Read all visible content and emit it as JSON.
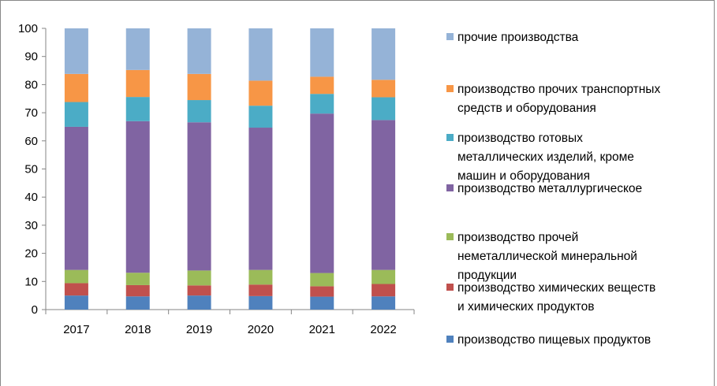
{
  "chart_data": {
    "type": "bar",
    "stacked": true,
    "percent_stacked": true,
    "categories": [
      "2017",
      "2018",
      "2019",
      "2020",
      "2021",
      "2022"
    ],
    "ylim": [
      0,
      100
    ],
    "yticks": [
      "0",
      "10",
      "20",
      "30",
      "40",
      "50",
      "60",
      "70",
      "80",
      "90",
      "100"
    ],
    "grid": false,
    "legend_position": "right",
    "series": [
      {
        "name": "производство пищевых продуктов",
        "color": "#4F81BD",
        "values": [
          5,
          4.7,
          5,
          4.8,
          4.6,
          4.7
        ]
      },
      {
        "name": "производство химических веществ и химических продуктов",
        "color": "#C0504D",
        "values": [
          4.4,
          4,
          3.6,
          4.1,
          3.7,
          4.4
        ]
      },
      {
        "name": "производство прочей неметаллической минеральной продукции",
        "color": "#9BBB59",
        "values": [
          4.7,
          4.4,
          5.3,
          5.2,
          4.7,
          5
        ]
      },
      {
        "name": "производство металлургическое",
        "color": "#8064A2",
        "values": [
          50.9,
          53.9,
          52.7,
          50.6,
          56.7,
          53.3
        ]
      },
      {
        "name": "производство готовых металлических изделий, кроме машин и оборудования",
        "color": "#4BACC6",
        "values": [
          8.8,
          8.6,
          7.9,
          7.8,
          7,
          8.1
        ]
      },
      {
        "name": "производство прочих транспортных средств и оборудования",
        "color": "#F79646",
        "values": [
          10,
          9.6,
          9.3,
          8.9,
          6.1,
          6.2
        ]
      },
      {
        "name": "прочие производства",
        "color": "#95B3D7",
        "values": [
          16.2,
          14.8,
          16.2,
          18.6,
          17.2,
          18.3
        ]
      }
    ]
  },
  "legend": {
    "items": [
      {
        "label": "прочие производства",
        "color": "#95B3D7"
      },
      {
        "label": "производство прочих транспортных\nсредств и оборудования",
        "color": "#F79646"
      },
      {
        "label": "производство готовых\nметаллических изделий, кроме\nмашин и оборудования",
        "color": "#4BACC6"
      },
      {
        "label": "производство металлургическое",
        "color": "#8064A2"
      },
      {
        "label": "производство прочей\nнеметаллической минеральной\nпродукции",
        "color": "#9BBB59"
      },
      {
        "label": "производство химических веществ\nи химических продуктов",
        "color": "#C0504D"
      },
      {
        "label": "производство пищевых продуктов",
        "color": "#4F81BD"
      }
    ]
  }
}
